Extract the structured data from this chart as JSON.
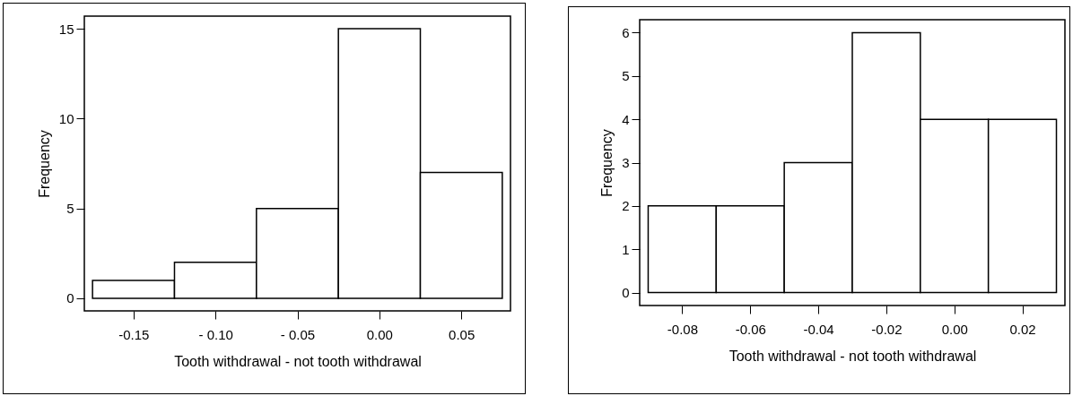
{
  "chart_data": [
    {
      "type": "histogram",
      "xlabel": "Tooth withdrawal - not tooth withdrawal",
      "ylabel": "Frequency",
      "bins": [
        -0.175,
        -0.125,
        -0.075,
        -0.025,
        0.025,
        0.075
      ],
      "values": [
        1,
        2,
        5,
        15,
        7
      ],
      "xlim": [
        -0.18,
        0.08
      ],
      "ylim": [
        -0.7,
        15.7
      ],
      "xticks": [
        -0.15,
        {
          "value": -0.1,
          "label": "- 0.10"
        },
        {
          "value": -0.05,
          "label": "- 0.05"
        },
        {
          "value": 0,
          "label": "0.00"
        },
        {
          "value": 0.05,
          "label": "0.05"
        }
      ],
      "yticks": [
        0,
        5,
        10,
        15
      ],
      "color": "#ffffff"
    },
    {
      "type": "histogram",
      "xlabel": "Tooth withdrawal - not tooth withdrawal",
      "ylabel": "Frequency",
      "bins": [
        -0.09,
        -0.07,
        -0.05,
        -0.03,
        -0.01,
        0.01,
        0.03
      ],
      "values": [
        2,
        2,
        3,
        6,
        4,
        4
      ],
      "xlim": [
        -0.0925,
        0.0325
      ],
      "ylim": [
        -0.3,
        6.3
      ],
      "xticks": [
        -0.08,
        -0.06,
        -0.04,
        -0.02,
        {
          "value": 0,
          "label": "0.00"
        },
        0.02
      ],
      "yticks": [
        0,
        1,
        2,
        3,
        4,
        5,
        6
      ],
      "color": "#ffffff"
    }
  ]
}
